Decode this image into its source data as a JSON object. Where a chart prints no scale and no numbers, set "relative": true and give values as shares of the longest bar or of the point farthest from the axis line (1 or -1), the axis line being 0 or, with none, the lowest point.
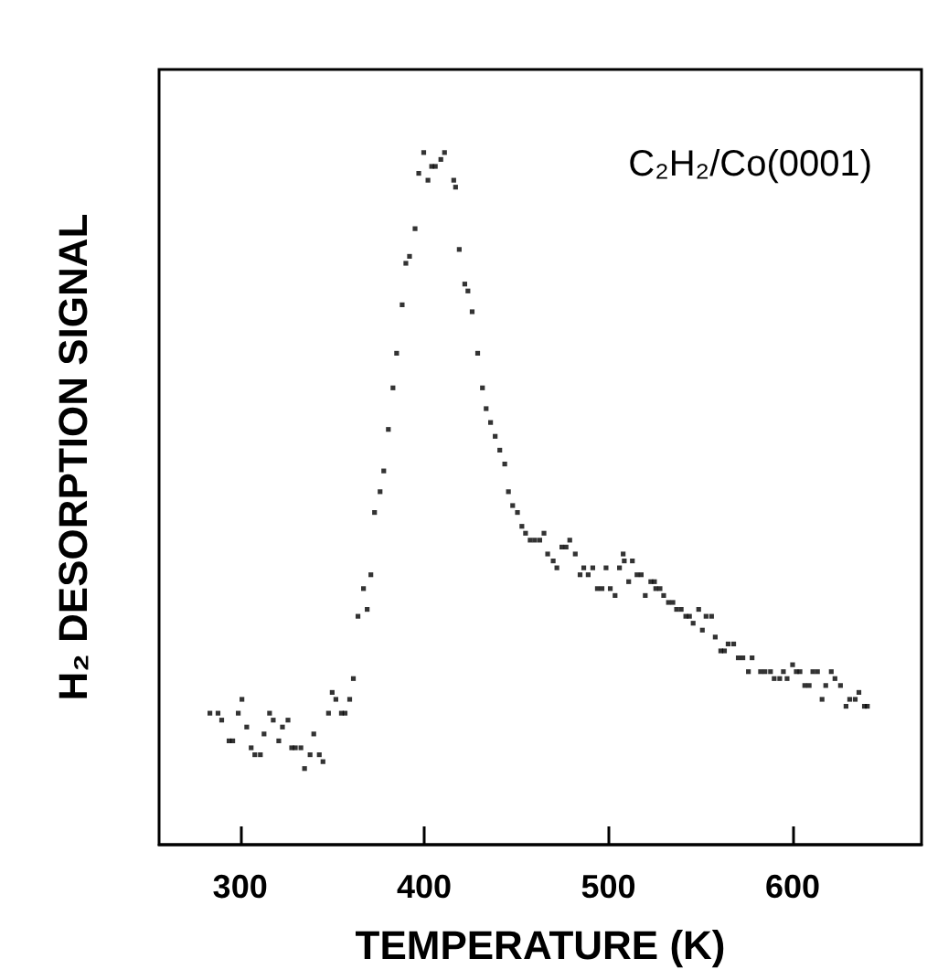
{
  "chart_data": {
    "type": "scatter",
    "xlabel": "TEMPERATURE (K)",
    "ylabel": "H₂ DESORPTION SIGNAL",
    "annotations": [
      "C₂H₂/Co(0001)"
    ],
    "relative": true,
    "marker": "square",
    "grid": false,
    "xlim": [
      256,
      670
    ],
    "xticks": [
      300,
      400,
      500,
      600
    ],
    "x": [
      283.6,
      288,
      290,
      294,
      296,
      299,
      301,
      303.6,
      306,
      308,
      311,
      313,
      316,
      318,
      321,
      323,
      326,
      328,
      330,
      333,
      335,
      338,
      340,
      343,
      345,
      348,
      350,
      352,
      355,
      357,
      359.5,
      361.5,
      364,
      367,
      369,
      371,
      373,
      376,
      378,
      380.5,
      383,
      385,
      388,
      390,
      392,
      395,
      397,
      399.7,
      402,
      404,
      406,
      409,
      411,
      416,
      417,
      419,
      422,
      423.7,
      426,
      429,
      431.6,
      433.6,
      436,
      438.5,
      441,
      443.7,
      445.7,
      448,
      450.6,
      453,
      455,
      457.5,
      460,
      462.7,
      465,
      467,
      470,
      472,
      474.7,
      477,
      479,
      482,
      484.6,
      486.6,
      489,
      491.5,
      494,
      496.5,
      498.7,
      501,
      503.6,
      506,
      508,
      508.6,
      511,
      513,
      515.5,
      517.8,
      520,
      523,
      525,
      525.7,
      528,
      530,
      532.6,
      535,
      537,
      539.5,
      542,
      544,
      546,
      549,
      551,
      553,
      556,
      558,
      561,
      563,
      565,
      568,
      570.5,
      573,
      576,
      578,
      582.6,
      585,
      588,
      590,
      593,
      595,
      597,
      600,
      602,
      604,
      606.6,
      609,
      611,
      613.5,
      616,
      618,
      621,
      623,
      626,
      629,
      631,
      634,
      636,
      639,
      640.6
    ],
    "series": [
      {
        "color": "#000000",
        "values": [
          0.19,
          0.19,
          0.18,
          0.15,
          0.15,
          0.19,
          0.21,
          0.17,
          0.14,
          0.13,
          0.13,
          0.16,
          0.19,
          0.18,
          0.15,
          0.17,
          0.18,
          0.14,
          0.14,
          0.14,
          0.11,
          0.13,
          0.16,
          0.13,
          0.12,
          0.19,
          0.22,
          0.21,
          0.19,
          0.19,
          0.21,
          0.24,
          0.33,
          0.37,
          0.34,
          0.39,
          0.48,
          0.51,
          0.54,
          0.6,
          0.66,
          0.71,
          0.78,
          0.84,
          0.85,
          0.89,
          0.97,
          1.0,
          0.96,
          0.98,
          0.98,
          0.99,
          1.0,
          0.96,
          0.95,
          0.86,
          0.81,
          0.8,
          0.77,
          0.71,
          0.66,
          0.63,
          0.61,
          0.59,
          0.57,
          0.55,
          0.51,
          0.49,
          0.48,
          0.46,
          0.45,
          0.44,
          0.44,
          0.44,
          0.45,
          0.42,
          0.41,
          0.4,
          0.43,
          0.43,
          0.44,
          0.42,
          0.39,
          0.4,
          0.39,
          0.4,
          0.37,
          0.37,
          0.4,
          0.37,
          0.36,
          0.4,
          0.42,
          0.41,
          0.38,
          0.41,
          0.39,
          0.39,
          0.36,
          0.38,
          0.38,
          0.37,
          0.37,
          0.36,
          0.35,
          0.35,
          0.34,
          0.34,
          0.33,
          0.33,
          0.32,
          0.34,
          0.31,
          0.33,
          0.33,
          0.3,
          0.28,
          0.28,
          0.29,
          0.29,
          0.27,
          0.27,
          0.25,
          0.27,
          0.25,
          0.25,
          0.25,
          0.24,
          0.24,
          0.25,
          0.24,
          0.26,
          0.25,
          0.25,
          0.23,
          0.23,
          0.25,
          0.25,
          0.21,
          0.23,
          0.25,
          0.24,
          0.23,
          0.2,
          0.21,
          0.21,
          0.22,
          0.2,
          0.2
        ]
      }
    ]
  }
}
